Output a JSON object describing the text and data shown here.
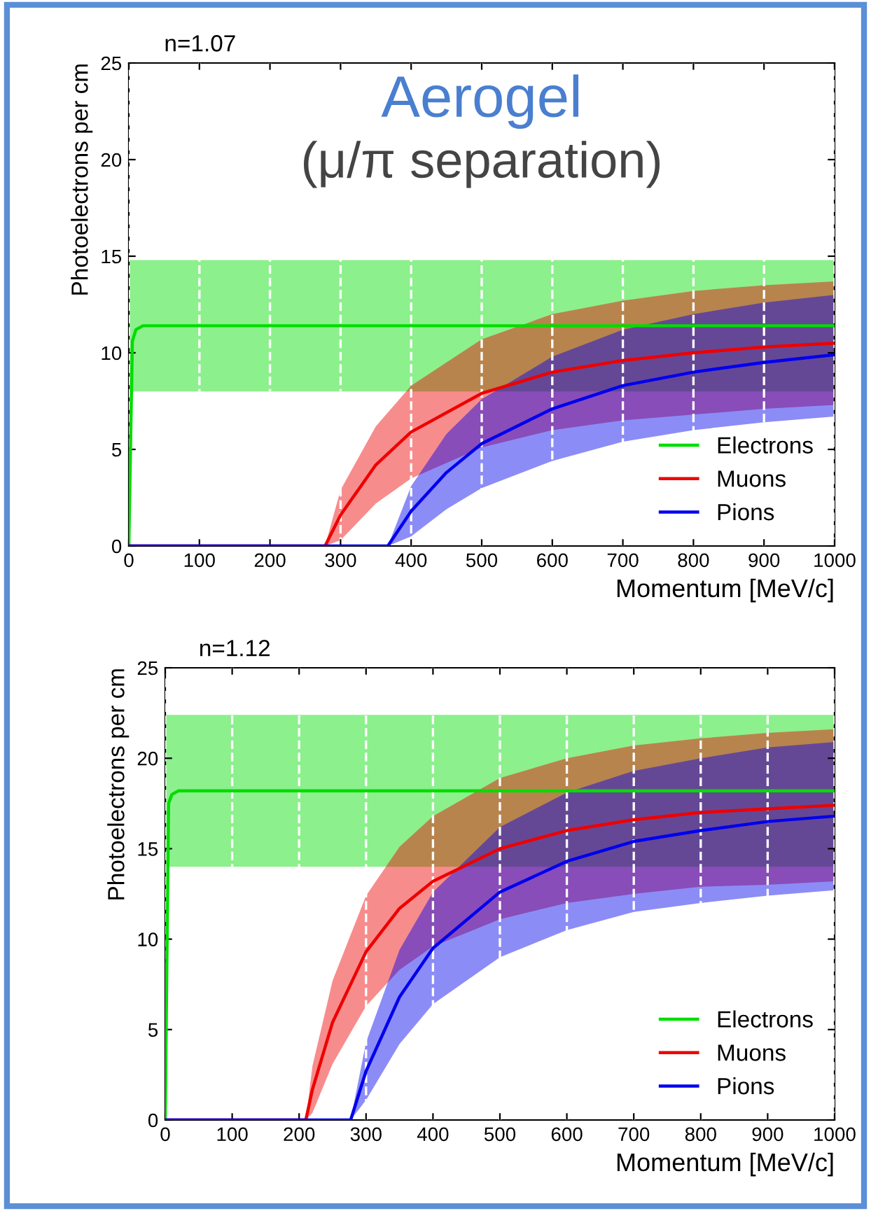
{
  "chart_data": [
    {
      "type": "line",
      "title": "n=1.07",
      "xlabel": "Momentum [MeV/c]",
      "ylabel": "Photoelectrons per cm",
      "annotations": [
        "Aerogel",
        "(μ/π separation)"
      ],
      "xlim": [
        0,
        1000
      ],
      "ylim": [
        0,
        25
      ],
      "xticks": [
        0,
        100,
        200,
        300,
        400,
        500,
        600,
        700,
        800,
        900,
        1000
      ],
      "yticks": [
        0,
        5,
        10,
        15,
        20,
        25
      ],
      "grid": "x",
      "legend": "bottom right",
      "series": [
        {
          "name": "Electrons",
          "color": "#00dd00",
          "x": [
            0,
            5,
            10,
            20,
            50,
            1000
          ],
          "values": [
            0,
            10.6,
            11.2,
            11.4,
            11.4,
            11.4
          ],
          "lower": [
            8.0,
            8.0,
            8.0,
            8.0,
            8.0,
            8.0
          ],
          "upper": [
            14.8,
            14.8,
            14.8,
            14.8,
            14.8,
            14.8
          ]
        },
        {
          "name": "Muons",
          "color": "#ee0000",
          "x": [
            0,
            278,
            300,
            350,
            400,
            500,
            600,
            700,
            800,
            900,
            1000
          ],
          "values": [
            0,
            0,
            1.6,
            4.2,
            5.9,
            7.9,
            9.0,
            9.6,
            10.0,
            10.3,
            10.5
          ],
          "lower": [
            0,
            0,
            0.3,
            2.2,
            3.5,
            5.1,
            6.0,
            6.5,
            6.8,
            7.1,
            7.3
          ],
          "upper": [
            0,
            0,
            2.9,
            6.2,
            8.3,
            10.7,
            12.0,
            12.7,
            13.2,
            13.5,
            13.7
          ]
        },
        {
          "name": "Pions",
          "color": "#0000ee",
          "x": [
            0,
            367,
            400,
            450,
            500,
            600,
            700,
            800,
            900,
            1000
          ],
          "values": [
            0,
            0,
            1.8,
            3.8,
            5.3,
            7.1,
            8.3,
            9.0,
            9.5,
            9.9
          ],
          "lower": [
            0,
            0,
            0.5,
            1.9,
            3.0,
            4.4,
            5.4,
            6.0,
            6.4,
            6.7
          ],
          "upper": [
            0,
            0,
            3.1,
            5.8,
            7.6,
            9.8,
            11.2,
            12.0,
            12.6,
            13.0
          ]
        }
      ]
    },
    {
      "type": "line",
      "title": "n=1.12",
      "xlabel": "Momentum [MeV/c]",
      "ylabel": "Photoelectrons per cm",
      "xlim": [
        0,
        1000
      ],
      "ylim": [
        0,
        25
      ],
      "xticks": [
        0,
        100,
        200,
        300,
        400,
        500,
        600,
        700,
        800,
        900,
        1000
      ],
      "yticks": [
        0,
        5,
        10,
        15,
        20,
        25
      ],
      "grid": "x",
      "legend": "bottom right",
      "series": [
        {
          "name": "Electrons",
          "color": "#00dd00",
          "x": [
            0,
            5,
            10,
            20,
            50,
            1000
          ],
          "values": [
            0,
            17.5,
            18.0,
            18.2,
            18.2,
            18.2
          ],
          "lower": [
            14.0,
            14.0,
            14.0,
            14.0,
            14.0,
            14.0
          ],
          "upper": [
            22.4,
            22.4,
            22.4,
            22.4,
            22.4,
            22.4
          ]
        },
        {
          "name": "Muons",
          "color": "#ee0000",
          "x": [
            0,
            210,
            220,
            250,
            300,
            350,
            400,
            500,
            600,
            700,
            800,
            900,
            1000
          ],
          "values": [
            0,
            0,
            1.7,
            5.4,
            9.3,
            11.7,
            13.2,
            15.0,
            16.0,
            16.6,
            17.0,
            17.2,
            17.4
          ],
          "lower": [
            0,
            0,
            0.4,
            3.1,
            6.3,
            8.3,
            9.6,
            11.1,
            12.0,
            12.5,
            12.9,
            13.0,
            13.2
          ],
          "upper": [
            0,
            0,
            3.0,
            7.7,
            12.4,
            15.1,
            16.8,
            18.9,
            20.0,
            20.7,
            21.1,
            21.4,
            21.6
          ]
        },
        {
          "name": "Pions",
          "color": "#0000ee",
          "x": [
            0,
            277,
            300,
            350,
            400,
            500,
            600,
            700,
            800,
            900,
            1000
          ],
          "values": [
            0,
            0,
            2.7,
            6.8,
            9.5,
            12.6,
            14.3,
            15.4,
            16.0,
            16.5,
            16.8
          ],
          "lower": [
            0,
            0,
            1.1,
            4.2,
            6.4,
            9.0,
            10.5,
            11.5,
            12.0,
            12.4,
            12.7
          ],
          "upper": [
            0,
            0,
            4.3,
            9.4,
            12.6,
            16.2,
            18.1,
            19.3,
            20.0,
            20.6,
            20.9
          ]
        }
      ]
    }
  ]
}
